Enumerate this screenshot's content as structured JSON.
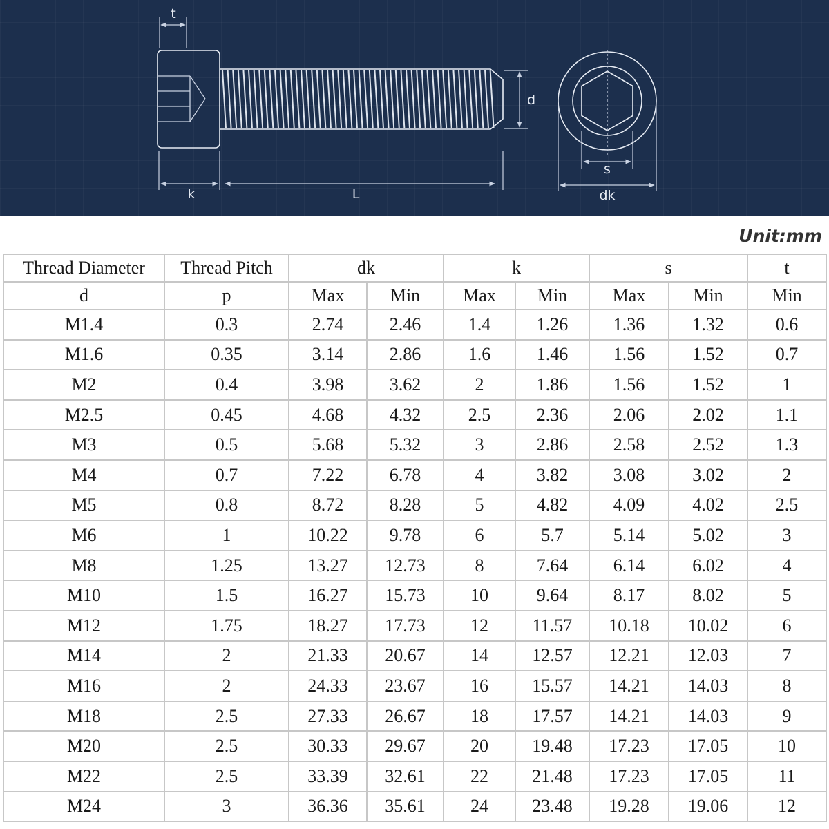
{
  "drawing": {
    "labels": {
      "t": "t",
      "d": "d",
      "k": "k",
      "L": "L",
      "s": "s",
      "dk": "dk"
    }
  },
  "unit": "Unit:mm",
  "table": {
    "header": {
      "thread_diameter": "Thread Diameter",
      "thread_diameter_symbol": "d",
      "thread_pitch": "Thread Pitch",
      "thread_pitch_symbol": "p",
      "dk": "dk",
      "k": "k",
      "s": "s",
      "t": "t",
      "max": "Max",
      "min": "Min"
    },
    "rows": [
      [
        "M1.4",
        "0.3",
        "2.74",
        "2.46",
        "1.4",
        "1.26",
        "1.36",
        "1.32",
        "0.6"
      ],
      [
        "M1.6",
        "0.35",
        "3.14",
        "2.86",
        "1.6",
        "1.46",
        "1.56",
        "1.52",
        "0.7"
      ],
      [
        "M2",
        "0.4",
        "3.98",
        "3.62",
        "2",
        "1.86",
        "1.56",
        "1.52",
        "1"
      ],
      [
        "M2.5",
        "0.45",
        "4.68",
        "4.32",
        "2.5",
        "2.36",
        "2.06",
        "2.02",
        "1.1"
      ],
      [
        "M3",
        "0.5",
        "5.68",
        "5.32",
        "3",
        "2.86",
        "2.58",
        "2.52",
        "1.3"
      ],
      [
        "M4",
        "0.7",
        "7.22",
        "6.78",
        "4",
        "3.82",
        "3.08",
        "3.02",
        "2"
      ],
      [
        "M5",
        "0.8",
        "8.72",
        "8.28",
        "5",
        "4.82",
        "4.09",
        "4.02",
        "2.5"
      ],
      [
        "M6",
        "1",
        "10.22",
        "9.78",
        "6",
        "5.7",
        "5.14",
        "5.02",
        "3"
      ],
      [
        "M8",
        "1.25",
        "13.27",
        "12.73",
        "8",
        "7.64",
        "6.14",
        "6.02",
        "4"
      ],
      [
        "M10",
        "1.5",
        "16.27",
        "15.73",
        "10",
        "9.64",
        "8.17",
        "8.02",
        "5"
      ],
      [
        "M12",
        "1.75",
        "18.27",
        "17.73",
        "12",
        "11.57",
        "10.18",
        "10.02",
        "6"
      ],
      [
        "M14",
        "2",
        "21.33",
        "20.67",
        "14",
        "12.57",
        "12.21",
        "12.03",
        "7"
      ],
      [
        "M16",
        "2",
        "24.33",
        "23.67",
        "16",
        "15.57",
        "14.21",
        "14.03",
        "8"
      ],
      [
        "M18",
        "2.5",
        "27.33",
        "26.67",
        "18",
        "17.57",
        "14.21",
        "14.03",
        "9"
      ],
      [
        "M20",
        "2.5",
        "30.33",
        "29.67",
        "20",
        "19.48",
        "17.23",
        "17.05",
        "10"
      ],
      [
        "M22",
        "2.5",
        "33.39",
        "32.61",
        "22",
        "21.48",
        "17.23",
        "17.05",
        "11"
      ],
      [
        "M24",
        "3",
        "36.36",
        "35.61",
        "24",
        "23.48",
        "19.28",
        "19.06",
        "12"
      ]
    ]
  }
}
